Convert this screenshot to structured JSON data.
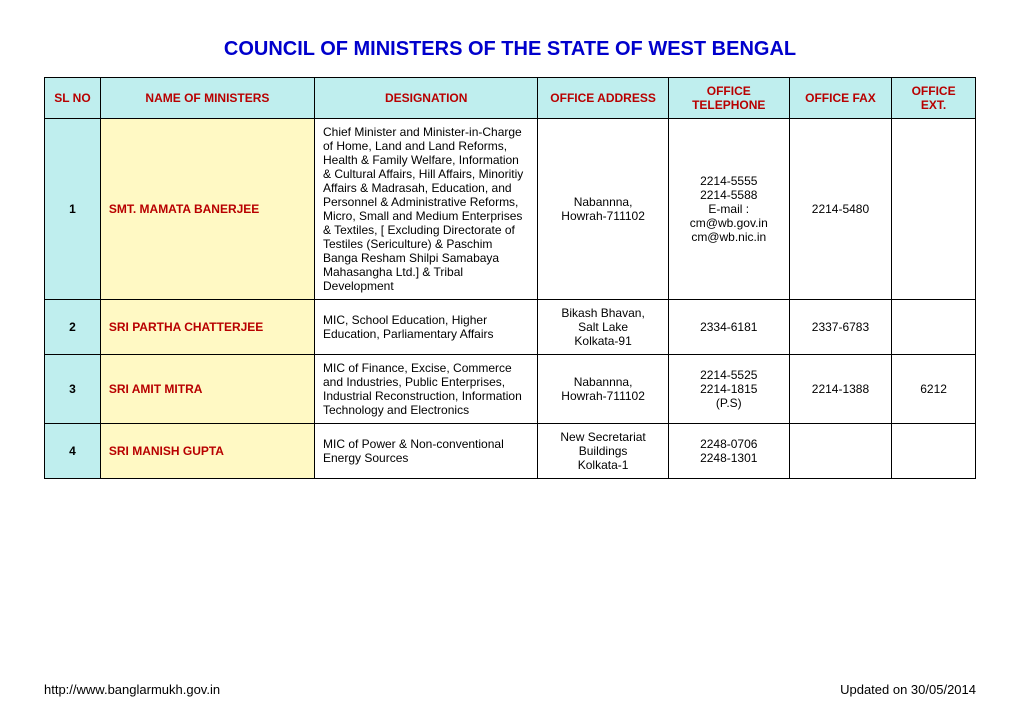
{
  "title": "COUNCIL OF MINISTERS OF THE STATE OF WEST BENGAL",
  "columns": [
    "SL NO",
    "NAME OF MINISTERS",
    "DESIGNATION",
    "OFFICE ADDRESS",
    "OFFICE TELEPHONE",
    "OFFICE FAX",
    "OFFICE EXT."
  ],
  "col_widths_pct": [
    6,
    23,
    24,
    14,
    13,
    11,
    9
  ],
  "header_bg": "#bfeeee",
  "header_text_color": "#b80000",
  "slno_bg": "#bfeeee",
  "name_bg": "#fff9c4",
  "name_text_color": "#b80000",
  "border_color": "#000000",
  "title_color": "#0000cc",
  "rows": [
    {
      "sl": "1",
      "name": "SMT. MAMATA BANERJEE",
      "designation": "Chief Minister and Minister-in-Charge of Home, Land and Land Reforms, Health & Family Welfare, Information & Cultural Affairs, Hill Affairs, Minoritiy Affairs & Madrasah, Education, and Personnel & Administrative Reforms, Micro, Small and Medium Enterprises & Textiles, [ Excluding Directorate of Testiles (Sericulture) & Paschim Banga Resham Shilpi Samabaya Mahasangha Ltd.] & Tribal Development",
      "address": "Nabannna,\nHowrah-711102",
      "telephone": "2214-5555\n2214-5588\nE-mail :\ncm@wb.gov.in\ncm@wb.nic.in",
      "fax": "2214-5480",
      "ext": ""
    },
    {
      "sl": "2",
      "name": "SRI PARTHA CHATTERJEE",
      "designation": "MIC, School Education, Higher Education, Parliamentary Affairs",
      "address": "Bikash Bhavan,\nSalt Lake\nKolkata-91",
      "telephone": "2334-6181",
      "fax": "2337-6783",
      "ext": ""
    },
    {
      "sl": "3",
      "name": "SRI AMIT MITRA",
      "designation": "MIC of Finance, Excise, Commerce and Industries, Public Enterprises, Industrial Reconstruction, Information Technology and Electronics",
      "address": "Nabannna,\nHowrah-711102",
      "telephone": "2214-5525\n2214-1815\n(P.S)",
      "fax": "2214-1388",
      "ext": "6212"
    },
    {
      "sl": "4",
      "name": "SRI  MANISH GUPTA",
      "designation": "MIC of Power & Non-conventional  Energy Sources",
      "address": "New Secretariat\nBuildings\nKolkata-1",
      "telephone": "2248-0706\n2248-1301",
      "fax": "",
      "ext": ""
    }
  ],
  "footer_left": "http://www.banglarmukh.gov.in",
  "footer_right": "Updated on 30/05/2014"
}
